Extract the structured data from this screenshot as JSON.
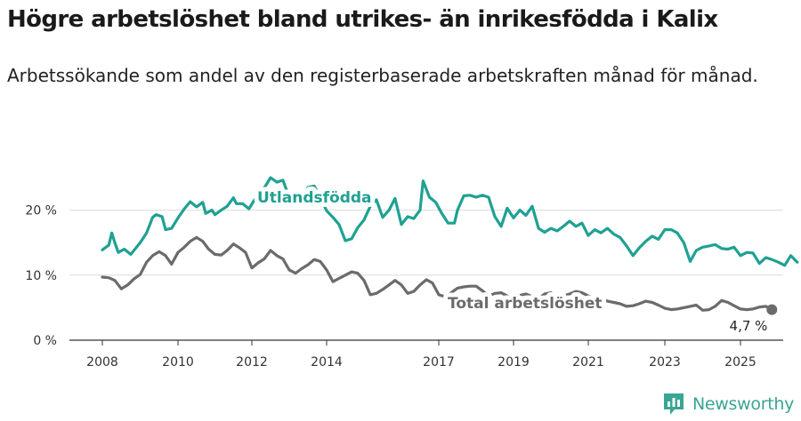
{
  "title": "Högre arbetslöshet bland utrikes- än inrikesfödda i Kalix",
  "subtitle": "Arbetssökande som andel av den registerbaserade arbetskraften månad för månad.",
  "brand": {
    "name": "Newsworthy",
    "icon": "bar-chart-logo-icon",
    "color": "#3aa592"
  },
  "chart_data": {
    "type": "line",
    "title": "Högre arbetslöshet bland utrikes- än inrikesfödda i Kalix",
    "subtitle": "Arbetssökande som andel av den registerbaserade arbetskraften månad för månad.",
    "xlabel": "",
    "ylabel": "",
    "xlim": [
      2007.5,
      2026
    ],
    "ylim": [
      0,
      25
    ],
    "x_ticks": [
      2008,
      2010,
      2012,
      2014,
      2017,
      2019,
      2021,
      2023,
      2025
    ],
    "x_tick_labels": [
      "2008",
      "2010",
      "2012",
      "2014",
      "2017",
      "2019",
      "2021",
      "2023",
      "2025"
    ],
    "y_ticks": [
      0,
      10,
      20
    ],
    "y_tick_labels": [
      "0 %",
      "10 %",
      "20 %"
    ],
    "grid": "horizontal",
    "end_label": "4,7 %",
    "series": [
      {
        "name": "Utlandsfödda",
        "color": "#1fa192",
        "points": [
          [
            2008.0,
            13.9
          ],
          [
            2008.17,
            14.6
          ],
          [
            2008.25,
            16.5
          ],
          [
            2008.33,
            15.0
          ],
          [
            2008.42,
            13.5
          ],
          [
            2008.58,
            14.0
          ],
          [
            2008.75,
            13.2
          ],
          [
            2009.0,
            15.0
          ],
          [
            2009.17,
            16.5
          ],
          [
            2009.33,
            18.9
          ],
          [
            2009.42,
            19.3
          ],
          [
            2009.58,
            19.0
          ],
          [
            2009.67,
            17.0
          ],
          [
            2009.83,
            17.2
          ],
          [
            2010.0,
            18.8
          ],
          [
            2010.17,
            20.2
          ],
          [
            2010.33,
            21.3
          ],
          [
            2010.5,
            20.5
          ],
          [
            2010.67,
            21.2
          ],
          [
            2010.75,
            19.5
          ],
          [
            2010.92,
            20.0
          ],
          [
            2011.0,
            19.3
          ],
          [
            2011.17,
            20.0
          ],
          [
            2011.33,
            20.6
          ],
          [
            2011.5,
            21.9
          ],
          [
            2011.58,
            21.0
          ],
          [
            2011.75,
            21.0
          ],
          [
            2011.92,
            20.2
          ],
          [
            2012.17,
            22.5
          ],
          [
            2012.33,
            23.4
          ],
          [
            2012.5,
            25.0
          ],
          [
            2012.67,
            24.3
          ],
          [
            2012.83,
            24.6
          ],
          [
            2013.0,
            22.0
          ],
          [
            2013.17,
            22.0
          ],
          [
            2013.33,
            21.3
          ],
          [
            2013.5,
            23.5
          ],
          [
            2013.67,
            23.7
          ],
          [
            2013.83,
            22.0
          ],
          [
            2014.0,
            19.9
          ],
          [
            2014.17,
            18.9
          ],
          [
            2014.33,
            17.8
          ],
          [
            2014.5,
            15.3
          ],
          [
            2014.67,
            15.6
          ],
          [
            2014.83,
            17.3
          ],
          [
            2015.0,
            18.5
          ],
          [
            2015.17,
            20.6
          ],
          [
            2015.33,
            21.6
          ],
          [
            2015.5,
            18.9
          ],
          [
            2015.67,
            20.0
          ],
          [
            2015.83,
            21.8
          ],
          [
            2016.0,
            17.8
          ],
          [
            2016.17,
            19.0
          ],
          [
            2016.33,
            18.7
          ],
          [
            2016.5,
            20.0
          ],
          [
            2016.58,
            24.5
          ],
          [
            2016.75,
            22.0
          ],
          [
            2016.92,
            21.2
          ],
          [
            2017.08,
            19.5
          ],
          [
            2017.25,
            18.0
          ],
          [
            2017.42,
            18.0
          ],
          [
            2017.5,
            20.0
          ],
          [
            2017.67,
            22.2
          ],
          [
            2017.83,
            22.3
          ],
          [
            2018.0,
            22.0
          ],
          [
            2018.17,
            22.3
          ],
          [
            2018.33,
            22.0
          ],
          [
            2018.5,
            19.0
          ],
          [
            2018.67,
            17.5
          ],
          [
            2018.83,
            20.3
          ],
          [
            2019.0,
            18.8
          ],
          [
            2019.17,
            20.0
          ],
          [
            2019.33,
            19.2
          ],
          [
            2019.5,
            20.6
          ],
          [
            2019.67,
            17.2
          ],
          [
            2019.83,
            16.6
          ],
          [
            2020.0,
            17.2
          ],
          [
            2020.17,
            16.8
          ],
          [
            2020.33,
            17.5
          ],
          [
            2020.5,
            18.3
          ],
          [
            2020.67,
            17.5
          ],
          [
            2020.83,
            18.0
          ],
          [
            2021.0,
            16.1
          ],
          [
            2021.17,
            17.0
          ],
          [
            2021.33,
            16.5
          ],
          [
            2021.5,
            17.2
          ],
          [
            2021.67,
            16.3
          ],
          [
            2021.83,
            15.8
          ],
          [
            2022.0,
            14.5
          ],
          [
            2022.17,
            13.0
          ],
          [
            2022.33,
            14.2
          ],
          [
            2022.5,
            15.2
          ],
          [
            2022.67,
            16.0
          ],
          [
            2022.83,
            15.5
          ],
          [
            2023.0,
            17.0
          ],
          [
            2023.17,
            17.0
          ],
          [
            2023.33,
            16.5
          ],
          [
            2023.5,
            15.0
          ],
          [
            2023.67,
            12.1
          ],
          [
            2023.83,
            13.8
          ],
          [
            2024.0,
            14.3
          ],
          [
            2024.17,
            14.5
          ],
          [
            2024.33,
            14.7
          ],
          [
            2024.5,
            14.1
          ],
          [
            2024.67,
            14.0
          ],
          [
            2024.83,
            14.3
          ],
          [
            2025.0,
            13.0
          ],
          [
            2025.17,
            13.5
          ],
          [
            2025.33,
            13.4
          ],
          [
            2025.5,
            11.8
          ],
          [
            2025.67,
            12.7
          ],
          [
            2025.83,
            12.4
          ],
          [
            2026.0,
            12.0
          ],
          [
            2026.17,
            11.5
          ],
          [
            2026.33,
            13.0
          ],
          [
            2026.5,
            12.0
          ]
        ]
      },
      {
        "name": "Total arbetslöshet",
        "color": "#6b6b6b",
        "points": [
          [
            2008.0,
            9.7
          ],
          [
            2008.17,
            9.6
          ],
          [
            2008.33,
            9.2
          ],
          [
            2008.5,
            7.9
          ],
          [
            2008.67,
            8.5
          ],
          [
            2008.83,
            9.4
          ],
          [
            2009.0,
            10.1
          ],
          [
            2009.17,
            12.0
          ],
          [
            2009.33,
            13.0
          ],
          [
            2009.5,
            13.6
          ],
          [
            2009.67,
            13.0
          ],
          [
            2009.83,
            11.7
          ],
          [
            2010.0,
            13.5
          ],
          [
            2010.17,
            14.3
          ],
          [
            2010.33,
            15.2
          ],
          [
            2010.5,
            15.8
          ],
          [
            2010.67,
            15.2
          ],
          [
            2010.83,
            14.0
          ],
          [
            2011.0,
            13.2
          ],
          [
            2011.17,
            13.1
          ],
          [
            2011.33,
            13.8
          ],
          [
            2011.5,
            14.8
          ],
          [
            2011.67,
            14.2
          ],
          [
            2011.83,
            13.5
          ],
          [
            2012.0,
            11.1
          ],
          [
            2012.17,
            11.9
          ],
          [
            2012.33,
            12.5
          ],
          [
            2012.5,
            13.8
          ],
          [
            2012.67,
            13.0
          ],
          [
            2012.83,
            12.5
          ],
          [
            2013.0,
            10.8
          ],
          [
            2013.17,
            10.3
          ],
          [
            2013.33,
            11.0
          ],
          [
            2013.5,
            11.6
          ],
          [
            2013.67,
            12.4
          ],
          [
            2013.83,
            12.1
          ],
          [
            2014.0,
            10.8
          ],
          [
            2014.17,
            9.0
          ],
          [
            2014.33,
            9.5
          ],
          [
            2014.5,
            10.0
          ],
          [
            2014.67,
            10.5
          ],
          [
            2014.83,
            10.3
          ],
          [
            2015.0,
            9.2
          ],
          [
            2015.17,
            7.0
          ],
          [
            2015.33,
            7.2
          ],
          [
            2015.5,
            7.8
          ],
          [
            2015.67,
            8.5
          ],
          [
            2015.83,
            9.2
          ],
          [
            2016.0,
            8.5
          ],
          [
            2016.17,
            7.2
          ],
          [
            2016.33,
            7.5
          ],
          [
            2016.5,
            8.5
          ],
          [
            2016.67,
            9.3
          ],
          [
            2016.83,
            8.8
          ],
          [
            2017.0,
            7.0
          ],
          [
            2017.17,
            6.7
          ],
          [
            2017.33,
            7.3
          ],
          [
            2017.5,
            8.0
          ],
          [
            2017.67,
            8.2
          ],
          [
            2017.83,
            8.3
          ],
          [
            2018.0,
            8.3
          ],
          [
            2018.17,
            7.6
          ],
          [
            2018.33,
            6.8
          ],
          [
            2018.5,
            7.2
          ],
          [
            2018.67,
            7.3
          ],
          [
            2018.83,
            6.8
          ],
          [
            2019.0,
            6.3
          ],
          [
            2019.17,
            6.9
          ],
          [
            2019.33,
            7.1
          ],
          [
            2019.5,
            6.7
          ],
          [
            2019.67,
            6.4
          ],
          [
            2019.83,
            7.1
          ],
          [
            2020.0,
            7.3
          ],
          [
            2020.17,
            6.6
          ],
          [
            2020.33,
            6.8
          ],
          [
            2020.5,
            7.1
          ],
          [
            2020.67,
            7.5
          ],
          [
            2020.83,
            7.3
          ],
          [
            2021.0,
            6.8
          ],
          [
            2021.17,
            6.5
          ],
          [
            2021.33,
            6.5
          ],
          [
            2021.5,
            6.0
          ],
          [
            2021.67,
            5.8
          ],
          [
            2021.83,
            5.6
          ],
          [
            2022.0,
            5.2
          ],
          [
            2022.17,
            5.3
          ],
          [
            2022.33,
            5.6
          ],
          [
            2022.5,
            6.0
          ],
          [
            2022.67,
            5.8
          ],
          [
            2022.83,
            5.4
          ],
          [
            2023.0,
            4.9
          ],
          [
            2023.17,
            4.7
          ],
          [
            2023.33,
            4.8
          ],
          [
            2023.5,
            5.0
          ],
          [
            2023.67,
            5.2
          ],
          [
            2023.83,
            5.4
          ],
          [
            2024.0,
            4.6
          ],
          [
            2024.17,
            4.7
          ],
          [
            2024.33,
            5.2
          ],
          [
            2024.5,
            6.1
          ],
          [
            2024.67,
            5.8
          ],
          [
            2024.83,
            5.3
          ],
          [
            2025.0,
            4.8
          ],
          [
            2025.17,
            4.7
          ],
          [
            2025.33,
            4.8
          ],
          [
            2025.5,
            5.1
          ],
          [
            2025.67,
            5.2
          ],
          [
            2025.83,
            4.7
          ]
        ]
      }
    ]
  }
}
